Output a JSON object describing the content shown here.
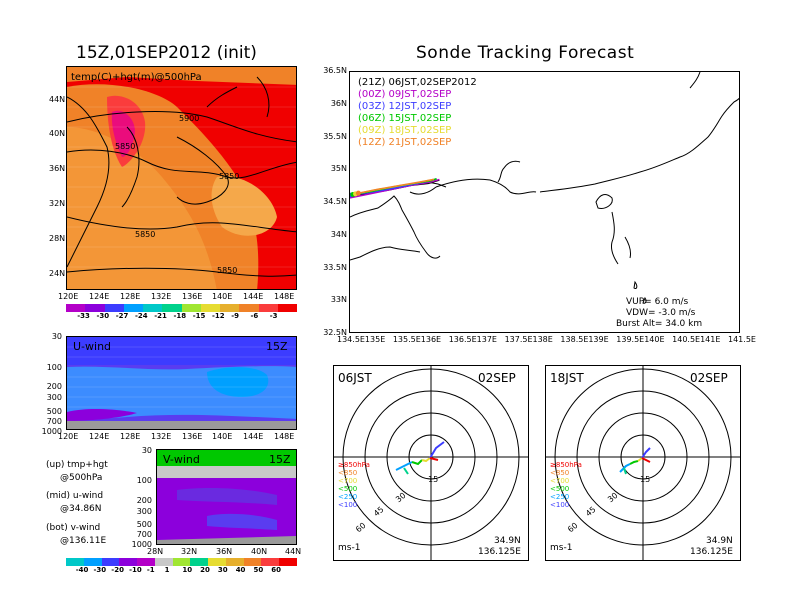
{
  "titles": {
    "left": "15Z,01SEP2012 (init)",
    "right": "Sonde Tracking Forecast"
  },
  "temp_map": {
    "label": "temp(C)+hgt(m)@500hPa",
    "contours": [
      "5900",
      "5850",
      "5850",
      "5850",
      "5850"
    ],
    "lat_ticks": [
      "44N",
      "40N",
      "36N",
      "32N",
      "28N",
      "24N"
    ],
    "lon_ticks": [
      "120E",
      "124E",
      "128E",
      "132E",
      "136E",
      "140E",
      "144E",
      "148E"
    ],
    "colorbar": [
      "-33",
      "-30",
      "-27",
      "-24",
      "-21",
      "-18",
      "-15",
      "-12",
      "-9",
      "-6",
      "-3"
    ],
    "colors": [
      "#b400c8",
      "#8c00dc",
      "#3c3cff",
      "#00a0ff",
      "#00c8c8",
      "#00d28c",
      "#a0e632",
      "#e6dc32",
      "#e6af2d",
      "#f08228",
      "#fa3c3c",
      "#f00000"
    ]
  },
  "u_wind": {
    "label": "U-wind",
    "time": "15Z",
    "p_ticks": [
      "30",
      "100",
      "200",
      "300",
      "500",
      "700",
      "1000"
    ],
    "lon_ticks": [
      "120E",
      "124E",
      "128E",
      "132E",
      "136E",
      "140E",
      "144E",
      "148E"
    ]
  },
  "v_wind": {
    "label": "V-wind",
    "time": "15Z",
    "p_ticks": [
      "30",
      "100",
      "200",
      "300",
      "500",
      "700",
      "1000"
    ],
    "lat_ticks": [
      "28N",
      "32N",
      "36N",
      "40N",
      "44N"
    ],
    "colorbar": [
      "-40",
      "-30",
      "-20",
      "-10",
      "-1",
      "1",
      "10",
      "20",
      "30",
      "40",
      "50",
      "60"
    ],
    "colors": [
      "#00c8c8",
      "#00a0ff",
      "#3c3cff",
      "#8c00dc",
      "#b400c8",
      "#c8c8c8",
      "#a0e632",
      "#00d28c",
      "#e6dc32",
      "#e6af2d",
      "#f08228",
      "#fa3c3c",
      "#f00000"
    ]
  },
  "legend_notes": [
    "(up) tmp+hgt",
    "@500hPa",
    "(mid) u-wind",
    "@34.86N",
    "(bot) v-wind",
    "@136.11E"
  ],
  "track_map": {
    "lat_ticks": [
      "36.5N",
      "36N",
      "35.5N",
      "35N",
      "34.5N",
      "34N",
      "33.5N",
      "33N",
      "32.5N"
    ],
    "lon_ticks": [
      "134.5E",
      "135E",
      "135.5E",
      "136E",
      "136.5E",
      "137E",
      "137.5E",
      "138E",
      "138.5E",
      "139E",
      "139.5E",
      "140E",
      "140.5E",
      "141E",
      "141.5E"
    ],
    "legend": [
      {
        "text": "(21Z)  06JST,02SEP2012",
        "color": "#000000"
      },
      {
        "text": "(00Z)  09JST,02SEP",
        "color": "#b400c8"
      },
      {
        "text": "(03Z)  12JST,02SEP",
        "color": "#3c3cff"
      },
      {
        "text": "(06Z)  15JST,02SEP",
        "color": "#00c800"
      },
      {
        "text": "(09Z)  18JST,02SEP",
        "color": "#e6dc32"
      },
      {
        "text": "(12Z)  21JST,02SEP",
        "color": "#f08228"
      }
    ],
    "params": [
      "VUP=  6.0  m/s",
      "VDW= -3.0  m/s",
      "Burst Alt=  34.0  km"
    ]
  },
  "hodo_left": {
    "time": "06JST",
    "date": "02SEP",
    "rings": [
      "15",
      "30",
      "45",
      "60"
    ],
    "levels": [
      "≥850hPa",
      "<850",
      "<700",
      "<500",
      "<250",
      "<100"
    ],
    "level_colors": [
      "#f00000",
      "#f08228",
      "#e6dc32",
      "#00c800",
      "#00a0ff",
      "#3c3cff"
    ],
    "unit": "ms-1",
    "lat": "34.9N",
    "lon": "136.125E"
  },
  "hodo_right": {
    "time": "18JST",
    "date": "02SEP",
    "rings": [
      "15",
      "30",
      "45",
      "60"
    ],
    "levels": [
      "≥850hPa",
      "<850",
      "<700",
      "<500",
      "<250",
      "<100"
    ],
    "level_colors": [
      "#f00000",
      "#f08228",
      "#e6dc32",
      "#00c800",
      "#00a0ff",
      "#3c3cff"
    ],
    "unit": "ms-1",
    "lat": "34.9N",
    "lon": "136.125E"
  },
  "chart_data": [
    {
      "type": "heatmap",
      "title": "15Z,01SEP2012 (init)",
      "subtitle": "temp(C)+hgt(m)@500hPa",
      "xlim": [
        120,
        149
      ],
      "ylim": [
        22,
        47
      ],
      "colorbar_levels": [
        -33,
        -30,
        -27,
        -24,
        -21,
        -18,
        -15,
        -12,
        -9,
        -6,
        -3
      ],
      "contour_labels": [
        5900,
        5850,
        5850,
        5850,
        5850
      ]
    },
    {
      "type": "heatmap",
      "title": "U-wind",
      "xlim": [
        120,
        149
      ],
      "y_pressure_levels": [
        30,
        100,
        200,
        300,
        500,
        700,
        1000
      ]
    },
    {
      "type": "heatmap",
      "title": "V-wind",
      "xlim": [
        28,
        44
      ],
      "y_pressure_levels": [
        30,
        100,
        200,
        300,
        500,
        700,
        1000
      ],
      "colorbar_levels": [
        -40,
        -30,
        -20,
        -10,
        -1,
        1,
        10,
        20,
        30,
        40,
        50,
        60
      ]
    },
    {
      "type": "line",
      "title": "Sonde Tracking Forecast",
      "xlim": [
        134.5,
        141.5
      ],
      "ylim": [
        32.5,
        36.5
      ],
      "series": [
        {
          "name": "(21Z)  06JST,02SEP2012",
          "x": [
            134.45,
            134.8,
            135.2,
            135.6,
            135.9,
            136.1
          ],
          "y": [
            34.6,
            34.64,
            34.7,
            34.77,
            34.8,
            34.85
          ]
        },
        {
          "name": "(00Z)  09JST,02SEP",
          "x": [
            134.45,
            134.8,
            135.2,
            135.6,
            135.95,
            136.1
          ],
          "y": [
            34.57,
            34.63,
            34.7,
            34.77,
            34.82,
            34.86
          ]
        },
        {
          "name": "(03Z)  12JST,02SEP",
          "x": [
            134.5,
            134.85,
            135.25,
            135.6,
            135.9,
            136.05
          ],
          "y": [
            34.62,
            34.66,
            34.72,
            34.78,
            34.83,
            34.87
          ]
        },
        {
          "name": "(06Z)  15JST,02SEP",
          "x": [
            134.55,
            134.9,
            135.3,
            135.65,
            135.95,
            136.05
          ],
          "y": [
            34.63,
            34.68,
            34.75,
            34.8,
            34.84,
            34.87
          ]
        },
        {
          "name": "(09Z)  18JST,02SEP",
          "x": [
            134.6,
            134.95,
            135.35,
            135.7,
            136.0
          ],
          "y": [
            34.64,
            34.7,
            34.76,
            34.81,
            34.86
          ]
        },
        {
          "name": "(12Z)  21JST,02SEP",
          "x": [
            134.65,
            135.0,
            135.4,
            135.75,
            136.0
          ],
          "y": [
            34.65,
            34.71,
            34.77,
            34.82,
            34.86
          ]
        }
      ]
    }
  ]
}
